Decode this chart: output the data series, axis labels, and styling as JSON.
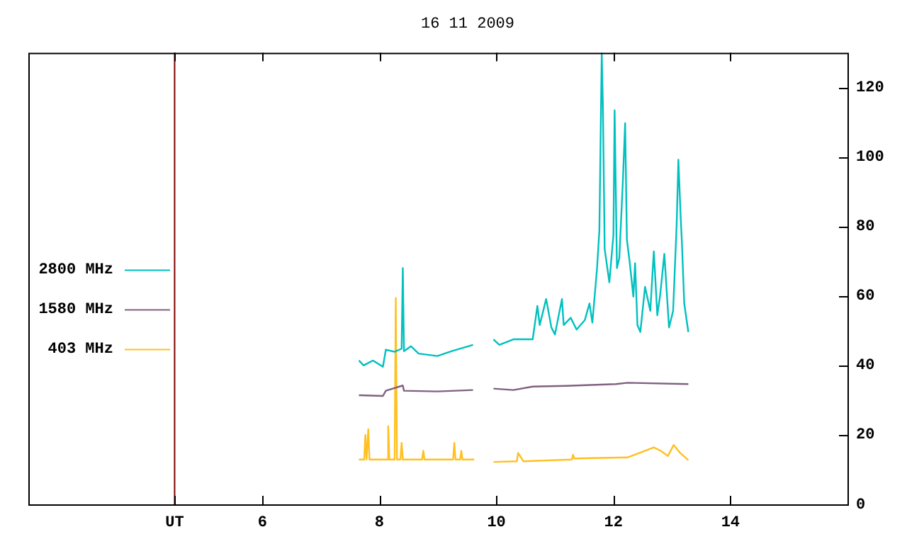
{
  "chart_data": {
    "type": "line",
    "title": "16 11 2009",
    "xlim": [
      2,
      16
    ],
    "xticks": [
      {
        "value": 4.5,
        "label": "UT"
      },
      6,
      8,
      10,
      12,
      14
    ],
    "ylim": [
      0,
      130
    ],
    "yticks": [
      0,
      20,
      40,
      60,
      80,
      100,
      120
    ],
    "grid": false,
    "legend": "left",
    "marker": "none",
    "ref_lines": [
      {
        "axis": "x",
        "value": 4.5,
        "color": "#800000"
      }
    ],
    "series": [
      {
        "name": "2800 MHz",
        "color": "#00c0c0",
        "x": [
          7.65,
          7.73,
          7.89,
          8.06,
          8.11,
          8.26,
          8.38,
          8.4,
          8.42,
          8.54,
          8.67,
          8.99,
          9.24,
          9.6,
          9.78,
          9.95,
          10.05,
          10.29,
          10.62,
          10.7,
          10.74,
          10.85,
          10.94,
          11.0,
          11.12,
          11.15,
          11.27,
          11.37,
          11.51,
          11.59,
          11.64,
          11.72,
          11.76,
          11.8,
          11.82,
          11.85,
          11.93,
          12.0,
          12.02,
          12.06,
          12.1,
          12.16,
          12.2,
          12.23,
          12.28,
          12.34,
          12.37,
          12.41,
          12.46,
          12.54,
          12.63,
          12.69,
          12.75,
          12.8,
          12.87,
          12.95,
          13.02,
          13.08,
          13.11,
          13.15,
          13.17,
          13.21,
          13.28
        ],
        "values": [
          41.4,
          40.0,
          41.4,
          39.6,
          44.5,
          43.9,
          44.8,
          68.0,
          44.1,
          45.5,
          43.4,
          42.7,
          44.1,
          45.9,
          null,
          47.5,
          45.9,
          47.5,
          47.5,
          57.1,
          51.6,
          59.1,
          50.9,
          48.9,
          59.1,
          51.6,
          53.7,
          50.3,
          53.0,
          57.8,
          52.3,
          68.0,
          79.0,
          130,
          114.5,
          73.5,
          63.9,
          77.6,
          113.4,
          68.0,
          70.8,
          92.6,
          109.7,
          76.2,
          69.4,
          59.8,
          69.4,
          51.6,
          49.6,
          62.6,
          55.7,
          72.8,
          54.4,
          60.5,
          72.1,
          50.9,
          55.7,
          80.3,
          99.2,
          82.4,
          75.5,
          57.8,
          49.6
        ]
      },
      {
        "name": "1580 MHz",
        "color": "#806080",
        "x": [
          7.65,
          8.06,
          8.11,
          8.4,
          8.42,
          8.99,
          9.6,
          9.78,
          9.95,
          10.29,
          10.62,
          11.19,
          12.04,
          12.24,
          13.28
        ],
        "values": [
          31.4,
          31.2,
          32.7,
          34.2,
          32.7,
          32.5,
          32.9,
          null,
          33.3,
          32.9,
          33.9,
          34.1,
          34.6,
          35.0,
          34.6
        ]
      },
      {
        "name": "403 MHz",
        "color": "#ffc020",
        "x": [
          7.65,
          7.74,
          7.76,
          7.78,
          7.81,
          7.83,
          8.13,
          8.15,
          8.17,
          8.26,
          8.28,
          8.3,
          8.36,
          8.38,
          8.4,
          8.73,
          8.75,
          8.77,
          9.26,
          9.28,
          9.3,
          9.38,
          9.4,
          9.42,
          9.62,
          9.78,
          9.95,
          10.35,
          10.37,
          10.46,
          11.29,
          11.31,
          11.33,
          12.24,
          12.69,
          12.81,
          12.93,
          13.03,
          13.14,
          13.28
        ],
        "values": [
          12.9,
          12.9,
          20.0,
          12.9,
          21.6,
          12.9,
          12.9,
          22.5,
          12.9,
          12.9,
          59.4,
          12.9,
          12.9,
          17.7,
          12.9,
          12.9,
          15.4,
          12.9,
          12.9,
          17.7,
          12.9,
          12.9,
          15.4,
          12.9,
          12.9,
          null,
          12.2,
          12.4,
          14.8,
          12.4,
          12.9,
          14.3,
          13.2,
          13.5,
          16.4,
          15.4,
          13.9,
          17.1,
          14.8,
          12.7
        ]
      }
    ]
  }
}
